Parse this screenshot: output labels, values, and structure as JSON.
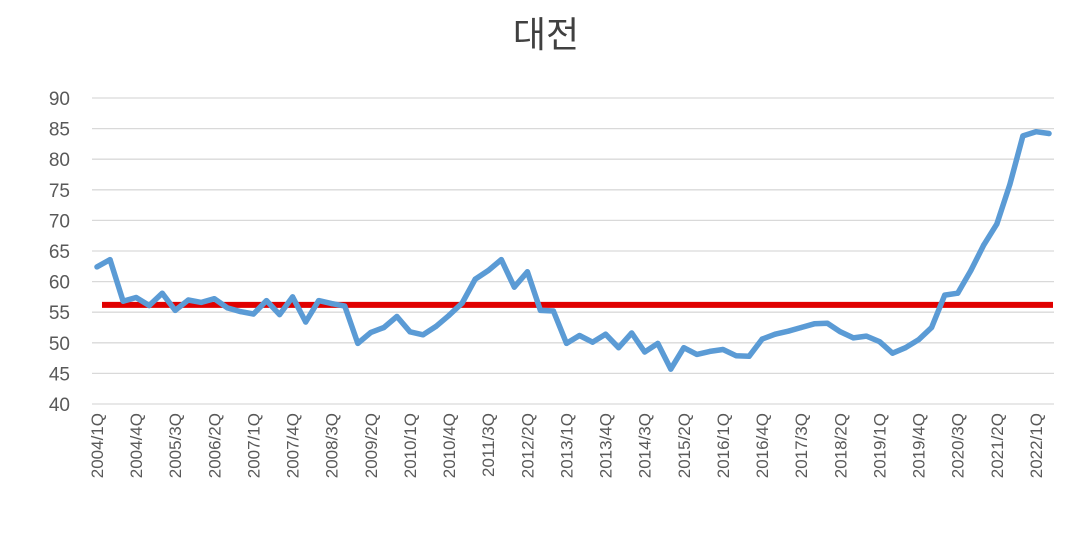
{
  "chart_data": {
    "type": "line",
    "title": "대전",
    "xlabel": "",
    "ylabel": "",
    "ylim": [
      40,
      90
    ],
    "yticks": [
      40,
      45,
      50,
      55,
      60,
      65,
      70,
      75,
      80,
      85,
      90
    ],
    "grid": true,
    "legend": "none",
    "x_tick_labels": [
      "2004/1Q",
      "2004/4Q",
      "2005/3Q",
      "2006/2Q",
      "2007/1Q",
      "2007/4Q",
      "2008/3Q",
      "2009/2Q",
      "2010/1Q",
      "2010/4Q",
      "2011/3Q",
      "2012/2Q",
      "2013/1Q",
      "2013/4Q",
      "2014/3Q",
      "2015/2Q",
      "2016/1Q",
      "2016/4Q",
      "2017/3Q",
      "2018/2Q",
      "2019/1Q",
      "2019/4Q",
      "2020/3Q",
      "2021/2Q",
      "2022/1Q"
    ],
    "x": [
      "2004/1Q",
      "2004/2Q",
      "2004/3Q",
      "2004/4Q",
      "2005/1Q",
      "2005/2Q",
      "2005/3Q",
      "2005/4Q",
      "2006/1Q",
      "2006/2Q",
      "2006/3Q",
      "2006/4Q",
      "2007/1Q",
      "2007/2Q",
      "2007/3Q",
      "2007/4Q",
      "2008/1Q",
      "2008/2Q",
      "2008/3Q",
      "2008/4Q",
      "2009/1Q",
      "2009/2Q",
      "2009/3Q",
      "2009/4Q",
      "2010/1Q",
      "2010/2Q",
      "2010/3Q",
      "2010/4Q",
      "2011/1Q",
      "2011/2Q",
      "2011/3Q",
      "2011/4Q",
      "2012/1Q",
      "2012/2Q",
      "2012/3Q",
      "2012/4Q",
      "2013/1Q",
      "2013/2Q",
      "2013/3Q",
      "2013/4Q",
      "2014/1Q",
      "2014/2Q",
      "2014/3Q",
      "2014/4Q",
      "2015/1Q",
      "2015/2Q",
      "2015/3Q",
      "2015/4Q",
      "2016/1Q",
      "2016/2Q",
      "2016/3Q",
      "2016/4Q",
      "2017/1Q",
      "2017/2Q",
      "2017/3Q",
      "2017/4Q",
      "2018/1Q",
      "2018/2Q",
      "2018/3Q",
      "2018/4Q",
      "2019/1Q",
      "2019/2Q",
      "2019/3Q",
      "2019/4Q",
      "2020/1Q",
      "2020/2Q",
      "2020/3Q",
      "2020/4Q",
      "2021/1Q",
      "2021/2Q",
      "2021/3Q",
      "2021/4Q",
      "2022/1Q",
      "2022/2Q"
    ],
    "series": [
      {
        "color": "#5b9bd5",
        "values": [
          62.4,
          63.6,
          56.8,
          57.4,
          56.1,
          58.1,
          55.3,
          57.0,
          56.6,
          57.2,
          55.7,
          55.1,
          54.7,
          56.9,
          54.6,
          57.5,
          53.4,
          56.9,
          56.4,
          56.0,
          49.9,
          51.7,
          52.5,
          54.3,
          51.8,
          51.3,
          52.7,
          54.5,
          56.5,
          60.4,
          61.8,
          63.6,
          59.1,
          61.6,
          55.3,
          55.2,
          49.9,
          51.2,
          50.1,
          51.4,
          49.2,
          51.6,
          48.5,
          49.9,
          45.7,
          49.2,
          48.1,
          48.6,
          48.9,
          47.9,
          47.8,
          50.6,
          51.4,
          51.9,
          52.5,
          53.1,
          53.2,
          51.8,
          50.8,
          51.1,
          50.2,
          48.3,
          49.2,
          50.5,
          52.5,
          57.8,
          58.1,
          61.8,
          66.0,
          69.4,
          75.9,
          83.8,
          84.5,
          84.2
        ]
      }
    ],
    "reference_line": {
      "value": 56.2,
      "color": "#e00000"
    }
  }
}
